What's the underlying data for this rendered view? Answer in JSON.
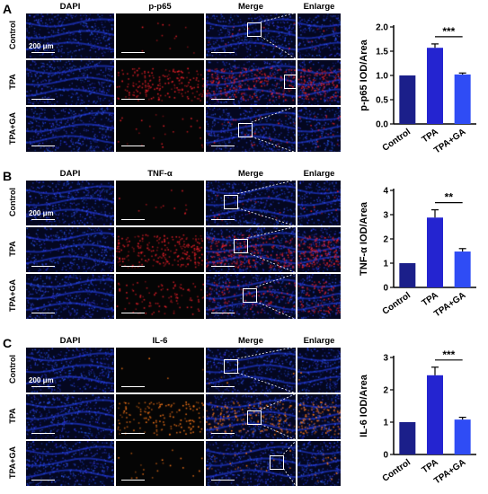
{
  "panels": [
    {
      "letter": "A",
      "columns": [
        "DAPI",
        "p-p65",
        "Merge",
        "Enlarge"
      ],
      "rows": [
        "Control",
        "TPA",
        "TPA+GA"
      ],
      "scale_label": "200 μm",
      "marker_color": "#e8202a",
      "marker_level": [
        0.05,
        0.8,
        0.1
      ],
      "roi": [
        [
          0.45,
          0.2
        ],
        [
          0.85,
          0.3
        ],
        [
          0.35,
          0.35
        ]
      ]
    },
    {
      "letter": "B",
      "columns": [
        "DAPI",
        "TNF-α",
        "Merge",
        "Enlarge"
      ],
      "rows": [
        "Control",
        "TPA",
        "TPA+GA"
      ],
      "scale_label": "200 μm",
      "marker_color": "#e8202a",
      "marker_level": [
        0.05,
        0.9,
        0.4
      ],
      "roi": [
        [
          0.2,
          0.3
        ],
        [
          0.3,
          0.25
        ],
        [
          0.4,
          0.3
        ]
      ]
    },
    {
      "letter": "C",
      "columns": [
        "DAPI",
        "IL-6",
        "Merge",
        "Enlarge"
      ],
      "rows": [
        "Control",
        "TPA",
        "TPA+GA"
      ],
      "scale_label": "200 μm",
      "marker_color": "#ff7a1a",
      "marker_level": [
        0.02,
        0.6,
        0.08
      ],
      "roi": [
        [
          0.2,
          0.25
        ],
        [
          0.45,
          0.35
        ],
        [
          0.7,
          0.3
        ]
      ]
    }
  ],
  "chart_data": [
    {
      "type": "bar",
      "categories": [
        "Control",
        "TPA",
        "TPA+GA"
      ],
      "values": [
        1.0,
        1.57,
        1.02
      ],
      "errors": [
        0,
        0.08,
        0.03
      ],
      "ylabel": "p-p65 IOD/Area",
      "ylim": [
        0,
        2.0
      ],
      "yticks": [
        "0.0",
        "0.5",
        "1.0",
        "1.5",
        "2.0"
      ],
      "significance": "***",
      "colors": [
        "#1b1f8a",
        "#2424d0",
        "#2f4cf5"
      ]
    },
    {
      "type": "bar",
      "categories": [
        "Control",
        "TPA",
        "TPA+GA"
      ],
      "values": [
        1.0,
        2.88,
        1.48
      ],
      "errors": [
        0,
        0.32,
        0.12
      ],
      "ylabel": "TNF-α IOD/Area",
      "ylim": [
        0,
        4
      ],
      "yticks": [
        "0",
        "1",
        "2",
        "3",
        "4"
      ],
      "significance": "**",
      "colors": [
        "#1b1f8a",
        "#2424d0",
        "#2f4cf5"
      ]
    },
    {
      "type": "bar",
      "categories": [
        "Control",
        "TPA",
        "TPA+GA"
      ],
      "values": [
        1.0,
        2.45,
        1.08
      ],
      "errors": [
        0,
        0.25,
        0.07
      ],
      "ylabel": "IL-6 IOD/Area",
      "ylim": [
        0,
        3
      ],
      "yticks": [
        "0",
        "1",
        "2",
        "3"
      ],
      "significance": "***",
      "colors": [
        "#1b1f8a",
        "#2424d0",
        "#2f4cf5"
      ]
    }
  ]
}
